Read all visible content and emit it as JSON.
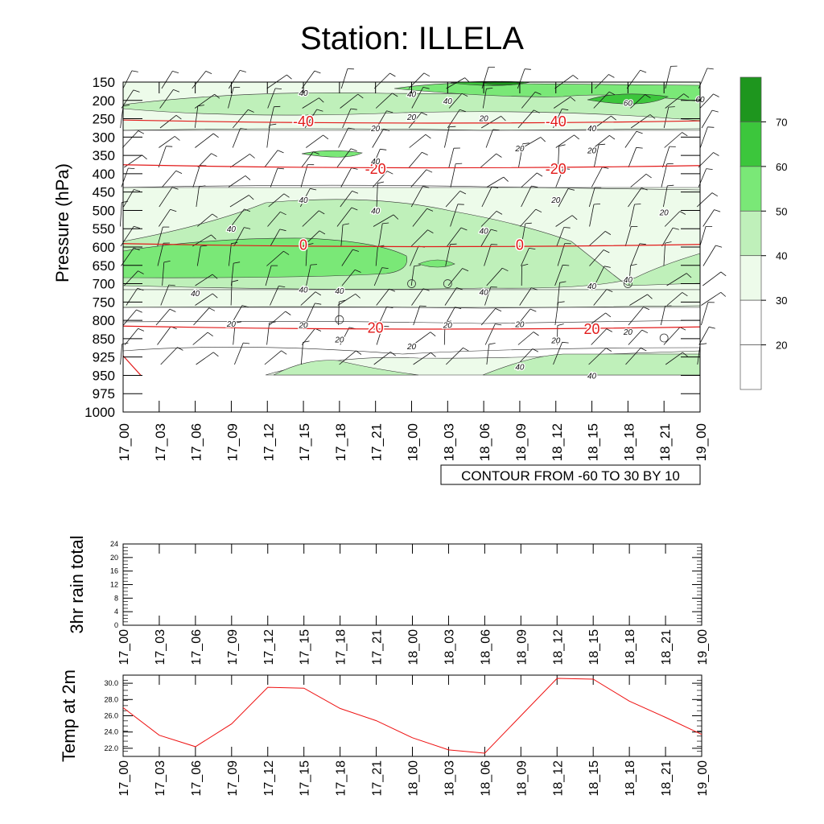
{
  "title": "Station: ILLELA",
  "chart_data": [
    {
      "type": "contour",
      "name": "upper-air time-pressure cross-section",
      "ylabel": "Pressure (hPa)",
      "pressure_levels": [
        150,
        200,
        250,
        300,
        350,
        400,
        450,
        500,
        550,
        600,
        650,
        700,
        750,
        800,
        850,
        925,
        950,
        975,
        1000
      ],
      "time_labels": [
        "17_00",
        "17_03",
        "17_06",
        "17_09",
        "17_12",
        "17_15",
        "17_18",
        "17_21",
        "18_00",
        "18_03",
        "18_06",
        "18_09",
        "18_12",
        "18_15",
        "18_18",
        "18_21",
        "19_00"
      ],
      "contour_info": "CONTOUR FROM -60 TO 30 BY 10",
      "temperature_contours": [
        {
          "value": -40,
          "pressure": 258
        },
        {
          "value": -20,
          "pressure": 380
        },
        {
          "value": 0,
          "pressure": 595
        },
        {
          "value": 20,
          "pressure": 820
        }
      ],
      "temperature_labels": [
        {
          "text": "-40",
          "time": "17_15",
          "pressure": 255
        },
        {
          "text": "-40",
          "time": "18_12",
          "pressure": 255
        },
        {
          "text": "-20",
          "time": "17_21",
          "pressure": 385
        },
        {
          "text": "-20",
          "time": "18_12",
          "pressure": 385
        },
        {
          "text": "0",
          "time": "17_15",
          "pressure": 592
        },
        {
          "text": "0",
          "time": "18_09",
          "pressure": 592
        },
        {
          "text": "20",
          "time": "17_21",
          "pressure": 818
        },
        {
          "text": "20",
          "time": "18_15",
          "pressure": 822
        }
      ],
      "humidity_labels": [
        {
          "text": "40",
          "time": "17_15",
          "pressure": 178
        },
        {
          "text": "40",
          "time": "18_00",
          "pressure": 182
        },
        {
          "text": "40",
          "time": "18_03",
          "pressure": 200
        },
        {
          "text": "60",
          "time": "18_18",
          "pressure": 206
        },
        {
          "text": "60",
          "time": "19_00",
          "pressure": 196
        },
        {
          "text": "20",
          "time": "18_00",
          "pressure": 244
        },
        {
          "text": "20",
          "time": "18_06",
          "pressure": 248
        },
        {
          "text": "20",
          "time": "17_21",
          "pressure": 275
        },
        {
          "text": "40",
          "time": "18_15",
          "pressure": 275
        },
        {
          "text": "20",
          "time": "18_09",
          "pressure": 330
        },
        {
          "text": "20",
          "time": "18_15",
          "pressure": 335
        },
        {
          "text": "40",
          "time": "17_21",
          "pressure": 365
        },
        {
          "text": "40",
          "time": "17_15",
          "pressure": 470
        },
        {
          "text": "20",
          "time": "18_12",
          "pressure": 470
        },
        {
          "text": "40",
          "time": "17_21",
          "pressure": 500
        },
        {
          "text": "20",
          "time": "18_21",
          "pressure": 505
        },
        {
          "text": "40",
          "time": "17_09",
          "pressure": 550
        },
        {
          "text": "40",
          "time": "18_06",
          "pressure": 555
        },
        {
          "text": "40",
          "time": "17_06",
          "pressure": 725
        },
        {
          "text": "40",
          "time": "17_15",
          "pressure": 715
        },
        {
          "text": "40",
          "time": "17_18",
          "pressure": 718
        },
        {
          "text": "40",
          "time": "18_06",
          "pressure": 722
        },
        {
          "text": "40",
          "time": "18_15",
          "pressure": 705
        },
        {
          "text": "40",
          "time": "18_18",
          "pressure": 688
        },
        {
          "text": "20",
          "time": "17_09",
          "pressure": 808
        },
        {
          "text": "20",
          "time": "17_15",
          "pressure": 812
        },
        {
          "text": "20",
          "time": "18_03",
          "pressure": 812
        },
        {
          "text": "20",
          "time": "18_09",
          "pressure": 810
        },
        {
          "text": "20",
          "time": "18_18",
          "pressure": 830
        },
        {
          "text": "20",
          "time": "17_18",
          "pressure": 852
        },
        {
          "text": "20",
          "time": "18_00",
          "pressure": 880
        },
        {
          "text": "20",
          "time": "18_12",
          "pressure": 855
        },
        {
          "text": "40",
          "time": "18_09",
          "pressure": 938
        },
        {
          "text": "40",
          "time": "18_15",
          "pressure": 950
        }
      ],
      "colorbar": {
        "levels": [
          20,
          30,
          40,
          50,
          60,
          70
        ],
        "colors": [
          "#ffffff",
          "#ffffff",
          "#edfbea",
          "#bff0ba",
          "#7ae877",
          "#3cc63c",
          "#1e961e"
        ]
      }
    },
    {
      "type": "line",
      "name": "3hr rain total",
      "ylabel": "3hr rain total",
      "x": [
        "17_00",
        "17_03",
        "17_06",
        "17_09",
        "17_12",
        "17_15",
        "17_18",
        "17_21",
        "18_00",
        "18_03",
        "18_06",
        "18_09",
        "18_12",
        "18_15",
        "18_18",
        "18_21",
        "19_00"
      ],
      "values": [
        0,
        0,
        0,
        0,
        0,
        0,
        0,
        0,
        0,
        0,
        0,
        0,
        0,
        0,
        0,
        0,
        0
      ],
      "ylim": [
        0,
        24
      ],
      "yticks": [
        "0",
        "4",
        "8",
        "12",
        "16",
        "20",
        "24"
      ]
    },
    {
      "type": "line",
      "name": "Temp at 2m",
      "ylabel": "Temp at 2m",
      "x": [
        "17_00",
        "17_03",
        "17_06",
        "17_09",
        "17_12",
        "17_15",
        "17_18",
        "17_21",
        "18_00",
        "18_03",
        "18_06",
        "18_09",
        "18_12",
        "18_15",
        "18_18",
        "18_21",
        "19_00"
      ],
      "values": [
        27.0,
        23.6,
        22.2,
        25.0,
        29.5,
        29.4,
        26.9,
        25.4,
        23.3,
        21.8,
        21.4,
        26.0,
        30.6,
        30.5,
        27.8,
        25.8,
        23.7
      ],
      "ylim": [
        21.0,
        31.0
      ],
      "yticks": [
        "22.0",
        "24.0",
        "26.0",
        "28.0",
        "30.0"
      ],
      "line_color": "#ee1111"
    }
  ]
}
